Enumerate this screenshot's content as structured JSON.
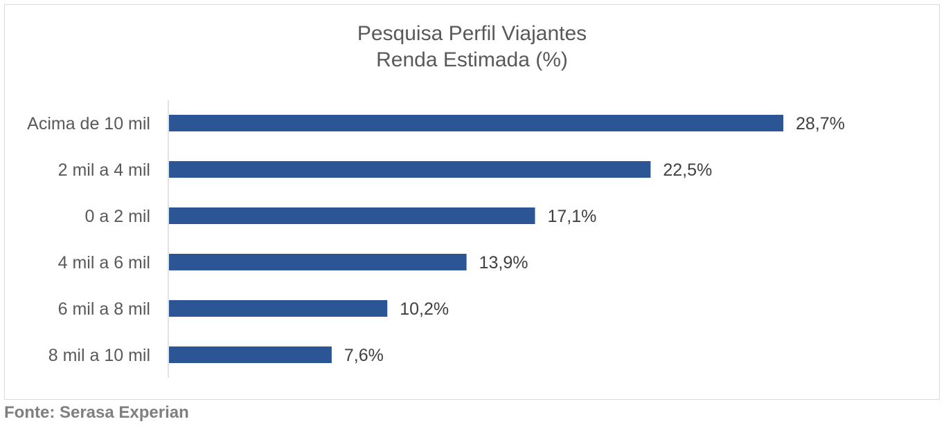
{
  "chart_data": {
    "type": "bar",
    "orientation": "horizontal",
    "title": [
      "Pesquisa Perfil Viajantes",
      "Renda Estimada (%)"
    ],
    "categories": [
      "Acima de 10 mil",
      "2 mil a 4 mil",
      "0 a 2 mil",
      "4 mil a 6 mil",
      "6 mil a 8 mil",
      "8 mil a 10 mil"
    ],
    "values": [
      28.7,
      22.5,
      17.1,
      13.9,
      10.2,
      7.6
    ],
    "data_labels": [
      "28,7%",
      "22,5%",
      "17,1%",
      "13,9%",
      "10,2%",
      "7,6%"
    ],
    "xlim": [
      0,
      30
    ],
    "grid": false,
    "legend": "none",
    "bar_color": "#2b5595"
  },
  "source": "Fonte: Serasa Experian"
}
